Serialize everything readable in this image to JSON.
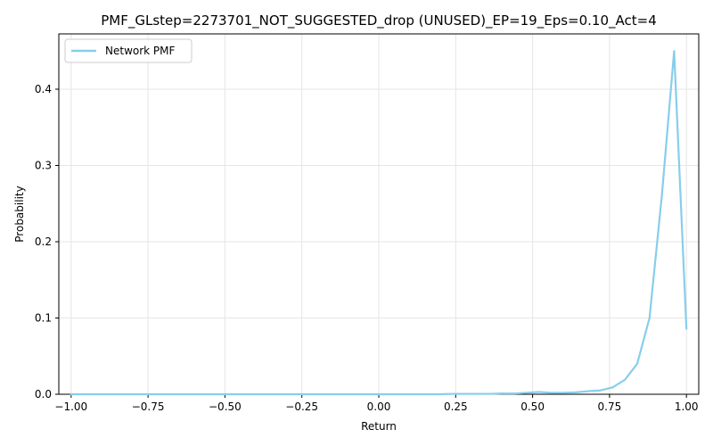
{
  "chart_data": {
    "type": "line",
    "title": "PMF_GLstep=2273701_NOT_SUGGESTED_drop (UNUSED)_EP=19_Eps=0.10_Act=4",
    "xlabel": "Return",
    "ylabel": "Probability",
    "xlim": [
      -1.04,
      1.04
    ],
    "ylim": [
      0,
      0.4725
    ],
    "x_ticks": [
      -1.0,
      -0.75,
      -0.5,
      -0.25,
      0.0,
      0.25,
      0.5,
      0.75,
      1.0
    ],
    "x_tick_labels": [
      "−1.00",
      "−0.75",
      "−0.50",
      "−0.25",
      "0.00",
      "0.25",
      "0.50",
      "0.75",
      "1.00"
    ],
    "y_ticks": [
      0.0,
      0.1,
      0.2,
      0.3,
      0.4
    ],
    "y_tick_labels": [
      "0.0",
      "0.1",
      "0.2",
      "0.3",
      "0.4"
    ],
    "grid": true,
    "legend_position": "top-left",
    "series": [
      {
        "name": "Network PMF",
        "color": "#87ceeb",
        "x": [
          -1.0,
          -0.96,
          -0.92,
          -0.88,
          -0.84,
          -0.8,
          -0.76,
          -0.72,
          -0.68,
          -0.64,
          -0.6,
          -0.56,
          -0.52,
          -0.48,
          -0.44,
          -0.4,
          -0.36,
          -0.32,
          -0.28,
          -0.24,
          -0.2,
          -0.16,
          -0.12,
          -0.08,
          -0.04,
          0.0,
          0.04,
          0.08,
          0.12,
          0.16,
          0.2,
          0.24,
          0.28,
          0.32,
          0.36,
          0.4,
          0.44,
          0.48,
          0.52,
          0.56,
          0.6,
          0.64,
          0.68,
          0.72,
          0.76,
          0.8,
          0.84,
          0.88,
          0.92,
          0.96,
          1.0
        ],
        "y": [
          0.0,
          0.0,
          0.0,
          0.0,
          0.0,
          0.0,
          0.0,
          0.0,
          0.0,
          0.0,
          0.0,
          0.0,
          0.0,
          0.0,
          0.0,
          0.0,
          0.0,
          0.0,
          0.0,
          0.0,
          0.0,
          0.0,
          0.0,
          0.0,
          0.0,
          0.0,
          0.0,
          0.0,
          0.0,
          0.0,
          0.0,
          0.0005,
          0.0005,
          0.0005,
          0.0005,
          0.001,
          0.001,
          0.002,
          0.003,
          0.002,
          0.002,
          0.0025,
          0.004,
          0.005,
          0.009,
          0.019,
          0.04,
          0.1,
          0.26,
          0.45,
          0.086
        ]
      }
    ]
  }
}
